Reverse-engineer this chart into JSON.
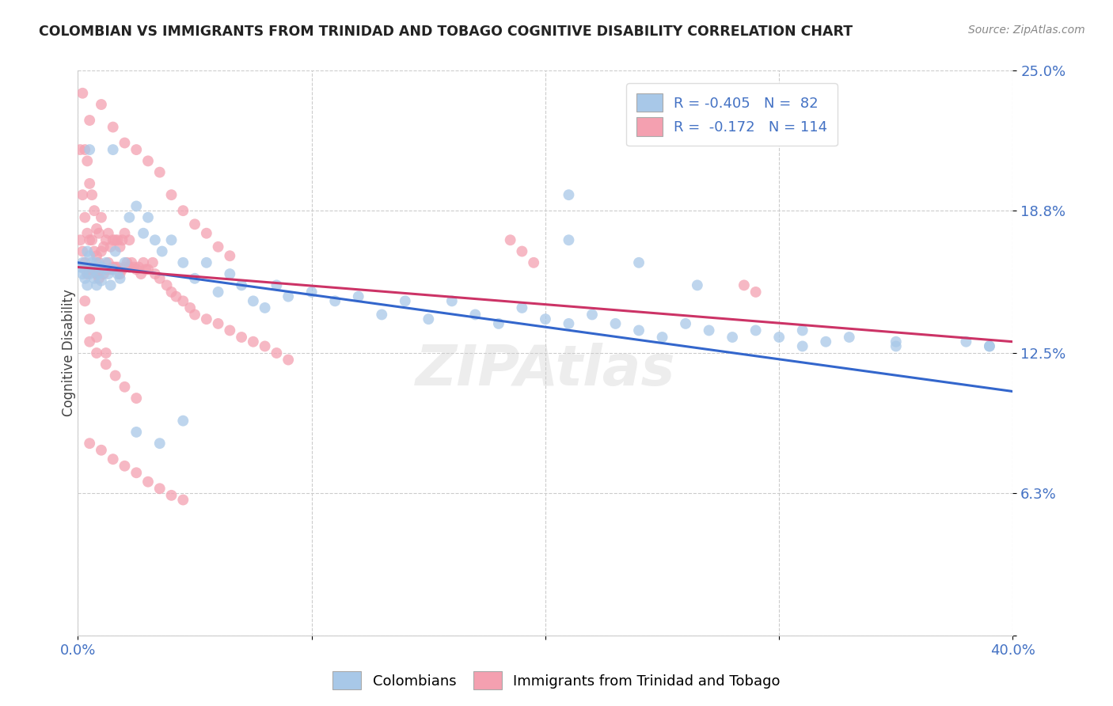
{
  "title": "COLOMBIAN VS IMMIGRANTS FROM TRINIDAD AND TOBAGO COGNITIVE DISABILITY CORRELATION CHART",
  "source": "Source: ZipAtlas.com",
  "ylabel": "Cognitive Disability",
  "xlim": [
    0.0,
    0.4
  ],
  "ylim": [
    0.0,
    0.25
  ],
  "xticks": [
    0.0,
    0.1,
    0.2,
    0.3,
    0.4
  ],
  "xticklabels": [
    "0.0%",
    "",
    "",
    "",
    "40.0%"
  ],
  "yticks": [
    0.0,
    0.063,
    0.125,
    0.188,
    0.25
  ],
  "yticklabels": [
    "",
    "6.3%",
    "12.5%",
    "18.8%",
    "25.0%"
  ],
  "blue_R": -0.405,
  "blue_N": 82,
  "pink_R": -0.172,
  "pink_N": 114,
  "blue_color": "#a8c8e8",
  "pink_color": "#f4a0b0",
  "blue_line_color": "#3366cc",
  "pink_line_color": "#cc3366",
  "legend_label_blue": "Colombians",
  "legend_label_pink": "Immigrants from Trinidad and Tobago",
  "blue_line_x0": 0.0,
  "blue_line_y0": 0.165,
  "blue_line_x1": 0.4,
  "blue_line_y1": 0.108,
  "pink_line_x0": 0.0,
  "pink_line_y0": 0.163,
  "pink_line_x1": 0.4,
  "pink_line_y1": 0.13,
  "blue_points_x": [
    0.001,
    0.002,
    0.002,
    0.003,
    0.003,
    0.004,
    0.004,
    0.005,
    0.005,
    0.006,
    0.007,
    0.007,
    0.008,
    0.008,
    0.009,
    0.01,
    0.01,
    0.011,
    0.012,
    0.013,
    0.014,
    0.015,
    0.016,
    0.017,
    0.018,
    0.02,
    0.022,
    0.025,
    0.028,
    0.03,
    0.033,
    0.036,
    0.04,
    0.045,
    0.05,
    0.055,
    0.06,
    0.065,
    0.07,
    0.075,
    0.08,
    0.085,
    0.09,
    0.1,
    0.11,
    0.12,
    0.13,
    0.14,
    0.15,
    0.16,
    0.17,
    0.18,
    0.19,
    0.2,
    0.21,
    0.22,
    0.23,
    0.24,
    0.25,
    0.26,
    0.27,
    0.28,
    0.29,
    0.3,
    0.31,
    0.32,
    0.33,
    0.35,
    0.38,
    0.39,
    0.005,
    0.015,
    0.025,
    0.035,
    0.045,
    0.21,
    0.24,
    0.265,
    0.31,
    0.21,
    0.35,
    0.39
  ],
  "blue_points_y": [
    0.163,
    0.16,
    0.165,
    0.158,
    0.162,
    0.17,
    0.155,
    0.168,
    0.16,
    0.165,
    0.162,
    0.158,
    0.165,
    0.155,
    0.16,
    0.163,
    0.157,
    0.162,
    0.165,
    0.16,
    0.155,
    0.162,
    0.17,
    0.16,
    0.158,
    0.165,
    0.185,
    0.19,
    0.178,
    0.185,
    0.175,
    0.17,
    0.175,
    0.165,
    0.158,
    0.165,
    0.152,
    0.16,
    0.155,
    0.148,
    0.145,
    0.155,
    0.15,
    0.152,
    0.148,
    0.15,
    0.142,
    0.148,
    0.14,
    0.148,
    0.142,
    0.138,
    0.145,
    0.14,
    0.138,
    0.142,
    0.138,
    0.135,
    0.132,
    0.138,
    0.135,
    0.132,
    0.135,
    0.132,
    0.135,
    0.13,
    0.132,
    0.13,
    0.13,
    0.128,
    0.215,
    0.215,
    0.09,
    0.085,
    0.095,
    0.195,
    0.165,
    0.155,
    0.128,
    0.175,
    0.128,
    0.128
  ],
  "pink_points_x": [
    0.001,
    0.001,
    0.002,
    0.002,
    0.002,
    0.003,
    0.003,
    0.003,
    0.004,
    0.004,
    0.004,
    0.005,
    0.005,
    0.005,
    0.005,
    0.006,
    0.006,
    0.006,
    0.007,
    0.007,
    0.007,
    0.008,
    0.008,
    0.008,
    0.009,
    0.009,
    0.009,
    0.01,
    0.01,
    0.01,
    0.011,
    0.011,
    0.012,
    0.012,
    0.013,
    0.013,
    0.014,
    0.014,
    0.015,
    0.015,
    0.016,
    0.016,
    0.017,
    0.017,
    0.018,
    0.018,
    0.019,
    0.019,
    0.02,
    0.02,
    0.021,
    0.022,
    0.022,
    0.023,
    0.024,
    0.025,
    0.026,
    0.027,
    0.028,
    0.029,
    0.03,
    0.032,
    0.033,
    0.035,
    0.038,
    0.04,
    0.042,
    0.045,
    0.048,
    0.05,
    0.055,
    0.06,
    0.065,
    0.07,
    0.075,
    0.08,
    0.085,
    0.09,
    0.01,
    0.015,
    0.02,
    0.025,
    0.03,
    0.035,
    0.04,
    0.045,
    0.05,
    0.055,
    0.06,
    0.065,
    0.005,
    0.008,
    0.012,
    0.016,
    0.02,
    0.025,
    0.005,
    0.01,
    0.015,
    0.02,
    0.025,
    0.03,
    0.035,
    0.04,
    0.045,
    0.003,
    0.005,
    0.008,
    0.012,
    0.185,
    0.19,
    0.195,
    0.285,
    0.29
  ],
  "pink_points_y": [
    0.175,
    0.215,
    0.17,
    0.195,
    0.24,
    0.165,
    0.185,
    0.215,
    0.16,
    0.178,
    0.21,
    0.162,
    0.175,
    0.2,
    0.228,
    0.163,
    0.175,
    0.195,
    0.162,
    0.17,
    0.188,
    0.16,
    0.168,
    0.18,
    0.158,
    0.165,
    0.178,
    0.163,
    0.17,
    0.185,
    0.16,
    0.172,
    0.162,
    0.175,
    0.165,
    0.178,
    0.162,
    0.172,
    0.163,
    0.175,
    0.163,
    0.175,
    0.163,
    0.175,
    0.16,
    0.172,
    0.162,
    0.175,
    0.163,
    0.178,
    0.165,
    0.163,
    0.175,
    0.165,
    0.163,
    0.162,
    0.163,
    0.16,
    0.165,
    0.162,
    0.162,
    0.165,
    0.16,
    0.158,
    0.155,
    0.152,
    0.15,
    0.148,
    0.145,
    0.142,
    0.14,
    0.138,
    0.135,
    0.132,
    0.13,
    0.128,
    0.125,
    0.122,
    0.235,
    0.225,
    0.218,
    0.215,
    0.21,
    0.205,
    0.195,
    0.188,
    0.182,
    0.178,
    0.172,
    0.168,
    0.13,
    0.125,
    0.12,
    0.115,
    0.11,
    0.105,
    0.085,
    0.082,
    0.078,
    0.075,
    0.072,
    0.068,
    0.065,
    0.062,
    0.06,
    0.148,
    0.14,
    0.132,
    0.125,
    0.175,
    0.17,
    0.165,
    0.155,
    0.152
  ]
}
